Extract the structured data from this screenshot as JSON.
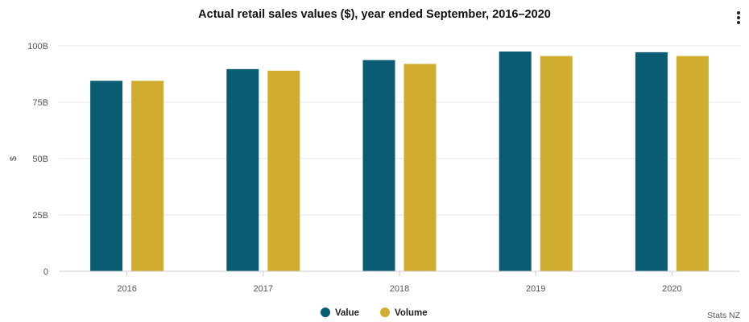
{
  "colors": {
    "value": "#0a5c73",
    "volume": "#d1ad2f",
    "grid": "#e6e6e6",
    "axis": "#cccccc"
  },
  "menu": {
    "icon": "kebab-menu-icon"
  },
  "credit": "Stats NZ",
  "chart_data": {
    "type": "bar",
    "title": "Actual retail sales values ($), year ended September, 2016–2020",
    "xlabel": "",
    "ylabel": "$",
    "categories": [
      "2016",
      "2017",
      "2018",
      "2019",
      "2020"
    ],
    "ylim": [
      0,
      100
    ],
    "y_ticks": [
      0,
      25,
      50,
      75,
      100
    ],
    "y_tick_labels": [
      "0",
      "25B",
      "50B",
      "75B",
      "100B"
    ],
    "grid": true,
    "legend_position": "bottom-center",
    "series": [
      {
        "name": "Value",
        "color": "#0a5c73",
        "values": [
          84.5,
          89.7,
          93.7,
          97.5,
          97.2
        ]
      },
      {
        "name": "Volume",
        "color": "#d1ad2f",
        "values": [
          84.5,
          89.0,
          92.0,
          95.5,
          95.5
        ]
      }
    ]
  }
}
